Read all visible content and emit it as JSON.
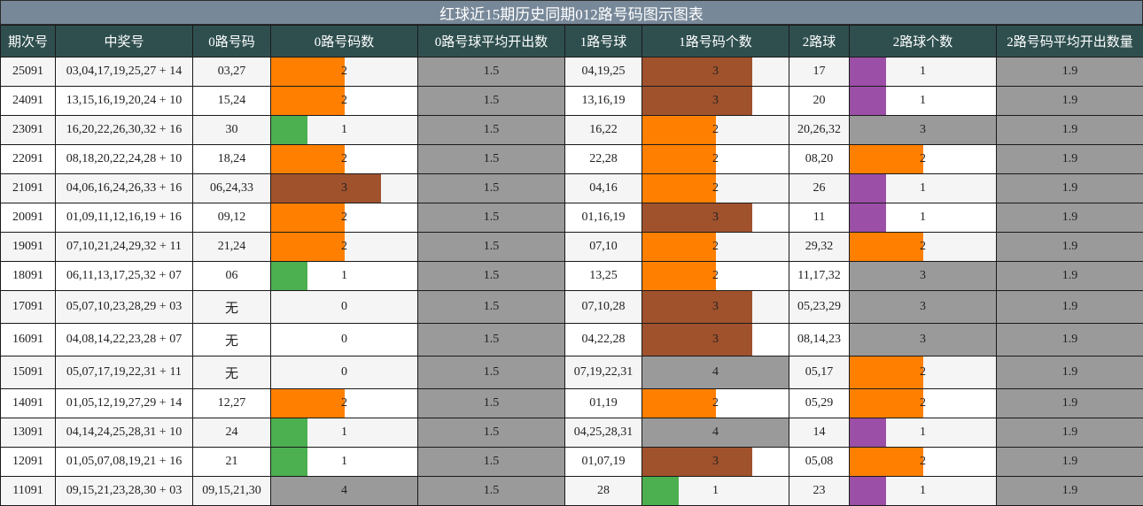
{
  "title": "红球近15期历史同期012路号码图示图表",
  "headers": [
    "期次号",
    "中奖号",
    "0路号码",
    "0路号码数",
    "0路号球平均开出数",
    "1路号球",
    "1路号码个数",
    "2路球",
    "2路球个数",
    "2路号码平均开出数量"
  ],
  "colors": {
    "count1": "#4caf50",
    "count2": "#ff7f00",
    "count3": "#a0522d",
    "count1_col2": "#9b4fa6",
    "full": "#9a9a9a"
  },
  "chart_data": {
    "type": "table",
    "title": "红球近15期历史同期012路号码图示图表",
    "max_count": 4,
    "rows": [
      {
        "period": "25091",
        "numbers": "03,04,17,19,25,27 + 14",
        "r0": "03,27",
        "c0": 2,
        "avg0": "1.5",
        "r1": "04,19,25",
        "c1": 3,
        "r2": "17",
        "c2": 1,
        "avg2": "1.9"
      },
      {
        "period": "24091",
        "numbers": "13,15,16,19,20,24 + 10",
        "r0": "15,24",
        "c0": 2,
        "avg0": "1.5",
        "r1": "13,16,19",
        "c1": 3,
        "r2": "20",
        "c2": 1,
        "avg2": "1.9"
      },
      {
        "period": "23091",
        "numbers": "16,20,22,26,30,32 + 16",
        "r0": "30",
        "c0": 1,
        "avg0": "1.5",
        "r1": "16,22",
        "c1": 2,
        "r2": "20,26,32",
        "c2": 3,
        "avg2": "1.9"
      },
      {
        "period": "22091",
        "numbers": "08,18,20,22,24,28 + 10",
        "r0": "18,24",
        "c0": 2,
        "avg0": "1.5",
        "r1": "22,28",
        "c1": 2,
        "r2": "08,20",
        "c2": 2,
        "avg2": "1.9"
      },
      {
        "period": "21091",
        "numbers": "04,06,16,24,26,33 + 16",
        "r0": "06,24,33",
        "c0": 3,
        "avg0": "1.5",
        "r1": "04,16",
        "c1": 2,
        "r2": "26",
        "c2": 1,
        "avg2": "1.9"
      },
      {
        "period": "20091",
        "numbers": "01,09,11,12,16,19 + 16",
        "r0": "09,12",
        "c0": 2,
        "avg0": "1.5",
        "r1": "01,16,19",
        "c1": 3,
        "r2": "11",
        "c2": 1,
        "avg2": "1.9"
      },
      {
        "period": "19091",
        "numbers": "07,10,21,24,29,32 + 11",
        "r0": "21,24",
        "c0": 2,
        "avg0": "1.5",
        "r1": "07,10",
        "c1": 2,
        "r2": "29,32",
        "c2": 2,
        "avg2": "1.9"
      },
      {
        "period": "18091",
        "numbers": "06,11,13,17,25,32 + 07",
        "r0": "06",
        "c0": 1,
        "avg0": "1.5",
        "r1": "13,25",
        "c1": 2,
        "r2": "11,17,32",
        "c2": 3,
        "avg2": "1.9"
      },
      {
        "period": "17091",
        "numbers": "05,07,10,23,28,29 + 03",
        "r0": "无",
        "c0": 0,
        "avg0": "1.5",
        "r1": "07,10,28",
        "c1": 3,
        "r2": "05,23,29",
        "c2": 3,
        "avg2": "1.9"
      },
      {
        "period": "16091",
        "numbers": "04,08,14,22,23,28 + 07",
        "r0": "无",
        "c0": 0,
        "avg0": "1.5",
        "r1": "04,22,28",
        "c1": 3,
        "r2": "08,14,23",
        "c2": 3,
        "avg2": "1.9"
      },
      {
        "period": "15091",
        "numbers": "05,07,17,19,22,31 + 11",
        "r0": "无",
        "c0": 0,
        "avg0": "1.5",
        "r1": "07,19,22,31",
        "c1": 4,
        "r2": "05,17",
        "c2": 2,
        "avg2": "1.9"
      },
      {
        "period": "14091",
        "numbers": "01,05,12,19,27,29 + 14",
        "r0": "12,27",
        "c0": 2,
        "avg0": "1.5",
        "r1": "01,19",
        "c1": 2,
        "r2": "05,29",
        "c2": 2,
        "avg2": "1.9"
      },
      {
        "period": "13091",
        "numbers": "04,14,24,25,28,31 + 10",
        "r0": "24",
        "c0": 1,
        "avg0": "1.5",
        "r1": "04,25,28,31",
        "c1": 4,
        "r2": "14",
        "c2": 1,
        "avg2": "1.9"
      },
      {
        "period": "12091",
        "numbers": "01,05,07,08,19,21 + 16",
        "r0": "21",
        "c0": 1,
        "avg0": "1.5",
        "r1": "01,07,19",
        "c1": 3,
        "r2": "05,08",
        "c2": 2,
        "avg2": "1.9"
      },
      {
        "period": "11091",
        "numbers": "09,15,21,23,28,30 + 03",
        "r0": "09,15,21,30",
        "c0": 4,
        "avg0": "1.5",
        "r1": "28",
        "c1": 1,
        "r2": "23",
        "c2": 1,
        "avg2": "1.9"
      }
    ]
  }
}
